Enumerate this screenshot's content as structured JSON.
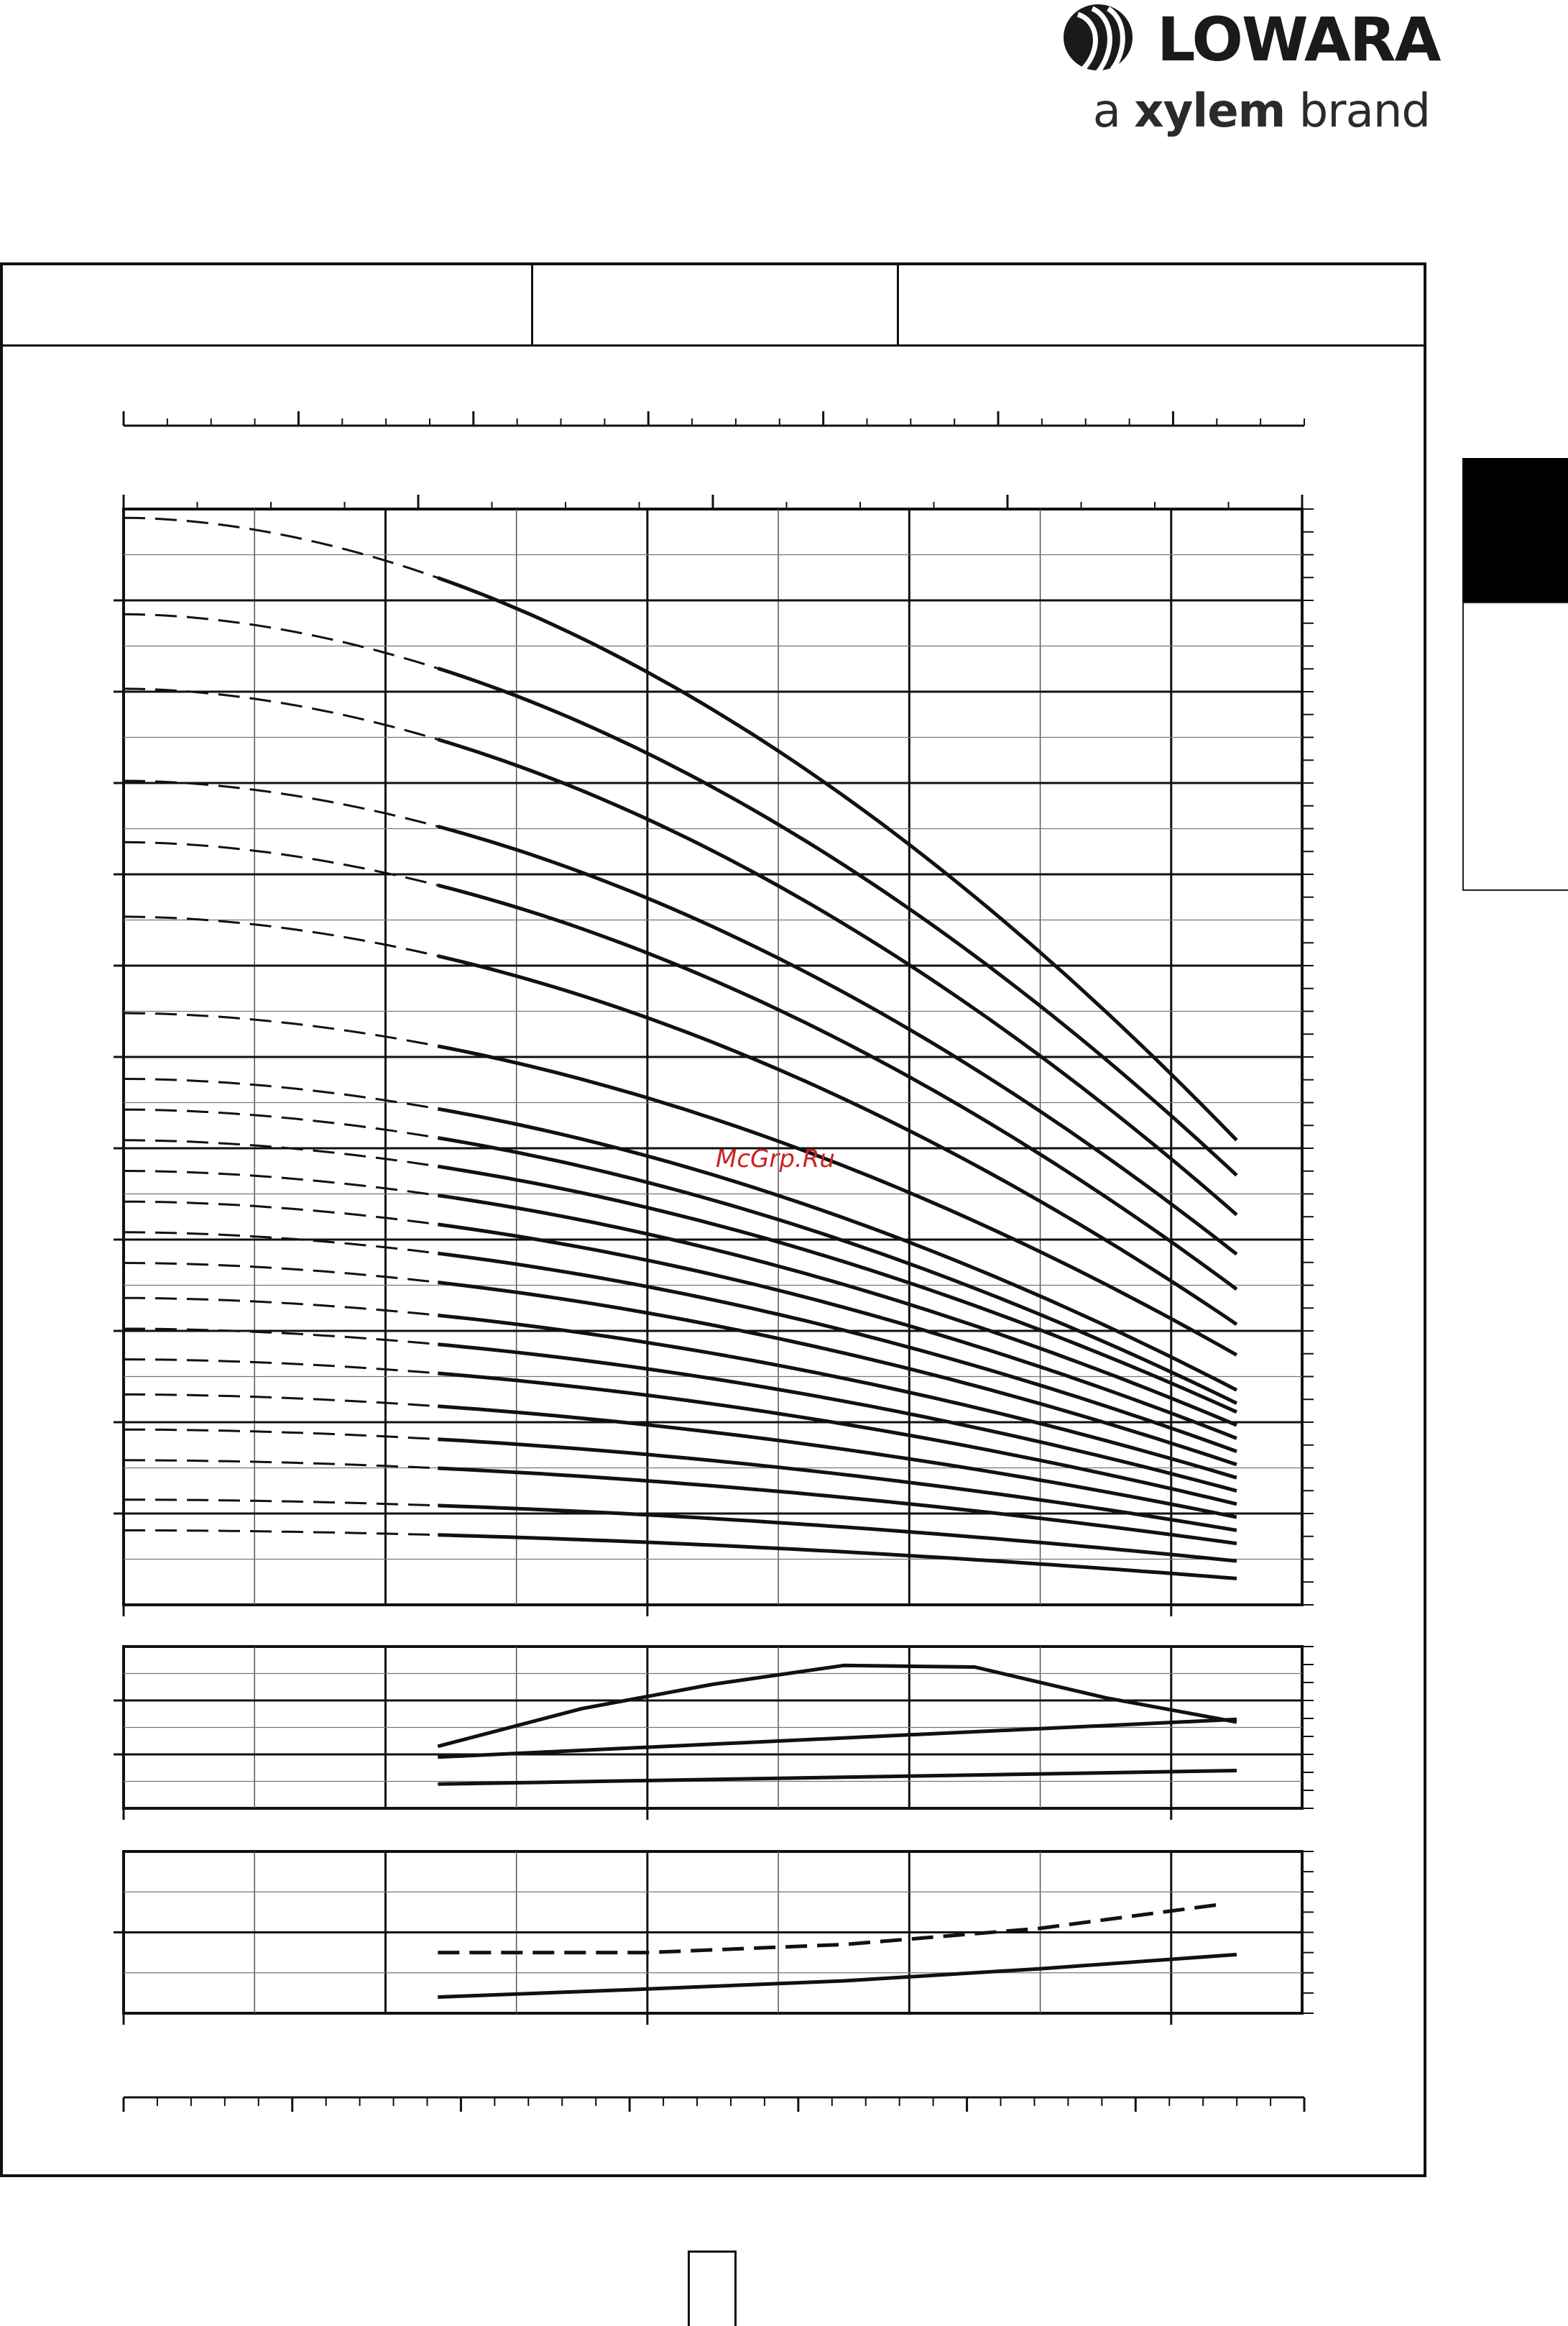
{
  "brand": {
    "logo_text": "LOWARA",
    "tagline_prefix": "a ",
    "tagline_brand": "xylem",
    "tagline_suffix": " brand",
    "logo_color": "#1a1a1a",
    "logo_icon": "lowara-swirl-icon"
  },
  "watermark": "McGrp.Ru",
  "header": {
    "cell_1": "",
    "cell_2": "",
    "cell_3": ""
  },
  "side_tab": {
    "label": ""
  },
  "page_number": "",
  "chart_data": [
    {
      "panel": "head",
      "type": "line",
      "title": "",
      "xlabel": "",
      "ylabel": "",
      "xlim": [
        0,
        9
      ],
      "ylim": [
        0,
        12.5
      ],
      "grid": true,
      "legend": "none",
      "line_style_note": "dashed segment = low-flow region, solid = operating range",
      "series": [
        {
          "name": "",
          "shutoff": 12.4,
          "end": 5.3
        },
        {
          "name": "",
          "shutoff": 11.3,
          "end": 4.9
        },
        {
          "name": "",
          "shutoff": 10.45,
          "end": 4.45
        },
        {
          "name": "",
          "shutoff": 9.4,
          "end": 4.0
        },
        {
          "name": "",
          "shutoff": 8.7,
          "end": 3.6
        },
        {
          "name": "",
          "shutoff": 7.85,
          "end": 3.2
        },
        {
          "name": "",
          "shutoff": 6.75,
          "end": 2.85
        },
        {
          "name": "",
          "shutoff": 6.0,
          "end": 2.45
        },
        {
          "name": "",
          "shutoff": 5.65,
          "end": 2.3
        },
        {
          "name": "",
          "shutoff": 5.3,
          "end": 2.2
        },
        {
          "name": "",
          "shutoff": 4.95,
          "end": 2.05
        },
        {
          "name": "",
          "shutoff": 4.6,
          "end": 1.9
        },
        {
          "name": "",
          "shutoff": 4.25,
          "end": 1.75
        },
        {
          "name": "",
          "shutoff": 3.9,
          "end": 1.6
        },
        {
          "name": "",
          "shutoff": 3.5,
          "end": 1.45
        },
        {
          "name": "",
          "shutoff": 3.15,
          "end": 1.3
        },
        {
          "name": "",
          "shutoff": 2.8,
          "end": 1.15
        },
        {
          "name": "",
          "shutoff": 2.4,
          "end": 1.0
        },
        {
          "name": "",
          "shutoff": 2.0,
          "end": 0.85
        },
        {
          "name": "",
          "shutoff": 1.65,
          "end": 0.7
        },
        {
          "name": "",
          "shutoff": 1.2,
          "end": 0.5
        },
        {
          "name": "",
          "shutoff": 0.85,
          "end": 0.3
        }
      ]
    },
    {
      "panel": "efficiency_power",
      "type": "line",
      "xlim": [
        0,
        9
      ],
      "ylim": [
        0,
        3
      ],
      "grid": true,
      "series": [
        {
          "name": "",
          "x": [
            2.4,
            3.5,
            4.5,
            5.5,
            6.5,
            7.5,
            8.5
          ],
          "y": [
            1.15,
            1.85,
            2.3,
            2.65,
            2.62,
            2.05,
            1.6
          ]
        },
        {
          "name": "",
          "x": [
            2.4,
            8.5
          ],
          "y": [
            0.95,
            1.65
          ]
        },
        {
          "name": "",
          "x": [
            2.4,
            8.5
          ],
          "y": [
            0.45,
            0.7
          ]
        }
      ]
    },
    {
      "panel": "npsh",
      "type": "line",
      "xlim": [
        0,
        9
      ],
      "ylim": [
        0,
        4
      ],
      "grid": true,
      "series": [
        {
          "name": "",
          "style": "dashed",
          "x": [
            2.4,
            4,
            5.5,
            7,
            8.4
          ],
          "y": [
            1.5,
            1.5,
            1.7,
            2.1,
            2.7
          ]
        },
        {
          "name": "",
          "style": "solid",
          "x": [
            2.4,
            4,
            5.5,
            7,
            8.5
          ],
          "y": [
            0.4,
            0.6,
            0.8,
            1.1,
            1.45
          ]
        }
      ]
    }
  ]
}
